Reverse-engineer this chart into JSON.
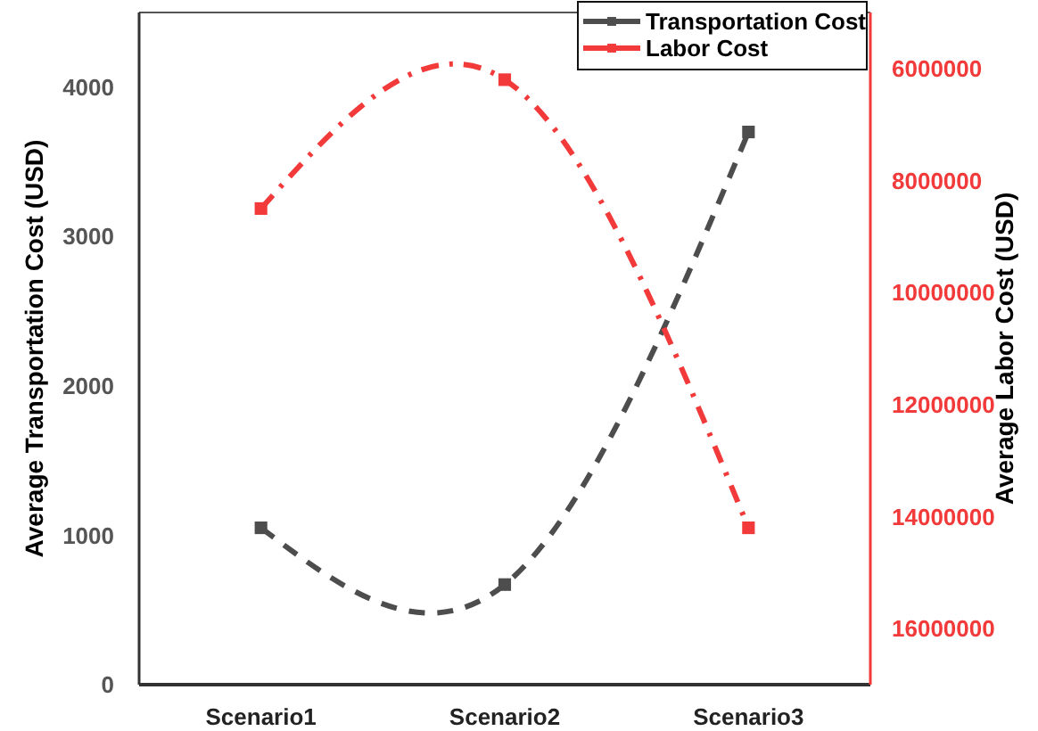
{
  "chart_data": {
    "type": "line",
    "ylabel": "Average Transportation Cost (USD)",
    "y2label": "Average Labor Cost (USD)",
    "categories": [
      "Scenario1",
      "Scenario2",
      "Scenario3"
    ],
    "series": [
      {
        "name": "Transportation Cost",
        "color": "#4d4d4d",
        "values": [
          1050,
          670,
          3700
        ],
        "line_style": "dashed"
      },
      {
        "name": "Labor Cost",
        "color": "#f23a3a",
        "values": [
          8500000,
          6200000,
          14200000
        ],
        "axis": "y2",
        "line_style": "dashdot"
      }
    ],
    "ylim": [
      0,
      4500
    ],
    "yticks": [
      0,
      1000,
      2000,
      3000,
      4000
    ],
    "y2lim": [
      17000000,
      5000000
    ],
    "y2ticks": [
      6000000,
      8000000,
      10000000,
      12000000,
      14000000,
      16000000
    ],
    "marker": "square",
    "legend": "top right",
    "grid": false
  }
}
